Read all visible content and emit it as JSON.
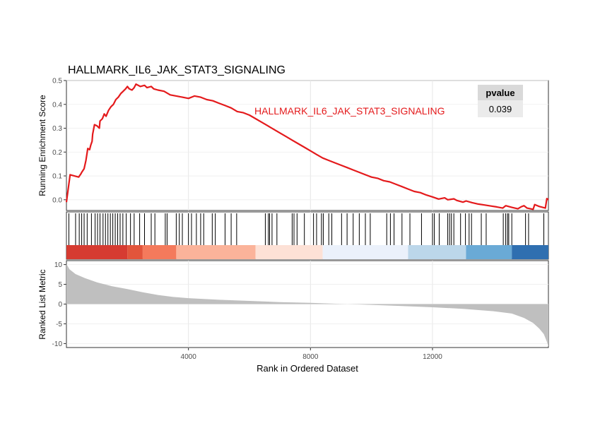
{
  "chart_data": {
    "type": "line",
    "title": "HALLMARK_IL6_JAK_STAT3_SIGNALING",
    "gene_set_label": "HALLMARK_IL6_JAK_STAT3_SIGNALING",
    "line_color": "#e41a1c",
    "xlabel": "Rank in Ordered Dataset",
    "xlim": [
      0,
      15800
    ],
    "xticks": [
      4000,
      8000,
      12000
    ],
    "grid": true,
    "enrichment": {
      "ylabel": "Running Enrichment Score",
      "ylim": [
        -0.045,
        0.5
      ],
      "yticks": [
        0.0,
        0.1,
        0.2,
        0.3,
        0.4,
        0.5
      ],
      "ytick_labels": [
        "0.0",
        "0.1",
        "0.2",
        "0.3",
        "0.4",
        "0.5"
      ],
      "points": [
        [
          0,
          -0.01
        ],
        [
          120,
          0.105
        ],
        [
          400,
          0.095
        ],
        [
          480,
          0.11
        ],
        [
          500,
          0.115
        ],
        [
          580,
          0.13
        ],
        [
          640,
          0.165
        ],
        [
          700,
          0.215
        ],
        [
          760,
          0.21
        ],
        [
          800,
          0.23
        ],
        [
          840,
          0.245
        ],
        [
          860,
          0.275
        ],
        [
          920,
          0.315
        ],
        [
          1000,
          0.31
        ],
        [
          1080,
          0.3
        ],
        [
          1100,
          0.33
        ],
        [
          1180,
          0.34
        ],
        [
          1240,
          0.36
        ],
        [
          1300,
          0.35
        ],
        [
          1380,
          0.375
        ],
        [
          1460,
          0.39
        ],
        [
          1540,
          0.4
        ],
        [
          1620,
          0.42
        ],
        [
          1700,
          0.43
        ],
        [
          1780,
          0.445
        ],
        [
          1860,
          0.455
        ],
        [
          1940,
          0.465
        ],
        [
          2000,
          0.475
        ],
        [
          2060,
          0.465
        ],
        [
          2150,
          0.46
        ],
        [
          2220,
          0.47
        ],
        [
          2280,
          0.485
        ],
        [
          2420,
          0.475
        ],
        [
          2560,
          0.48
        ],
        [
          2640,
          0.47
        ],
        [
          2780,
          0.475
        ],
        [
          2860,
          0.465
        ],
        [
          3000,
          0.46
        ],
        [
          3200,
          0.455
        ],
        [
          3400,
          0.44
        ],
        [
          3600,
          0.435
        ],
        [
          3800,
          0.43
        ],
        [
          4000,
          0.425
        ],
        [
          4200,
          0.435
        ],
        [
          4400,
          0.43
        ],
        [
          4600,
          0.42
        ],
        [
          4800,
          0.415
        ],
        [
          5000,
          0.405
        ],
        [
          5200,
          0.395
        ],
        [
          5400,
          0.385
        ],
        [
          5600,
          0.37
        ],
        [
          5800,
          0.365
        ],
        [
          6000,
          0.355
        ],
        [
          6200,
          0.34
        ],
        [
          6400,
          0.325
        ],
        [
          6600,
          0.31
        ],
        [
          6800,
          0.295
        ],
        [
          7000,
          0.28
        ],
        [
          7200,
          0.265
        ],
        [
          7400,
          0.25
        ],
        [
          7600,
          0.235
        ],
        [
          7800,
          0.22
        ],
        [
          8000,
          0.205
        ],
        [
          8200,
          0.19
        ],
        [
          8400,
          0.175
        ],
        [
          8600,
          0.165
        ],
        [
          8800,
          0.155
        ],
        [
          9000,
          0.145
        ],
        [
          9200,
          0.135
        ],
        [
          9400,
          0.125
        ],
        [
          9600,
          0.115
        ],
        [
          9800,
          0.105
        ],
        [
          10000,
          0.095
        ],
        [
          10200,
          0.09
        ],
        [
          10400,
          0.08
        ],
        [
          10600,
          0.075
        ],
        [
          10800,
          0.065
        ],
        [
          11000,
          0.055
        ],
        [
          11200,
          0.045
        ],
        [
          11400,
          0.035
        ],
        [
          11600,
          0.03
        ],
        [
          11800,
          0.02
        ],
        [
          12000,
          0.012
        ],
        [
          12200,
          0.003
        ],
        [
          12400,
          0.008
        ],
        [
          12500,
          0.0
        ],
        [
          12700,
          0.004
        ],
        [
          12800,
          -0.003
        ],
        [
          13000,
          -0.01
        ],
        [
          13100,
          -0.005
        ],
        [
          13300,
          -0.012
        ],
        [
          13500,
          -0.018
        ],
        [
          13700,
          -0.022
        ],
        [
          13900,
          -0.026
        ],
        [
          14100,
          -0.03
        ],
        [
          14300,
          -0.035
        ],
        [
          14400,
          -0.025
        ],
        [
          14600,
          -0.032
        ],
        [
          14800,
          -0.038
        ],
        [
          14900,
          -0.03
        ],
        [
          15000,
          -0.025
        ],
        [
          15100,
          -0.035
        ],
        [
          15300,
          -0.04
        ],
        [
          15350,
          -0.02
        ],
        [
          15500,
          -0.028
        ],
        [
          15700,
          -0.035
        ],
        [
          15750,
          0.005
        ],
        [
          15800,
          0.0
        ]
      ]
    },
    "pvalue_table": {
      "header": "pvalue",
      "value": "0.039"
    },
    "hits": [
      80,
      300,
      420,
      500,
      580,
      680,
      820,
      940,
      1020,
      1100,
      1200,
      1280,
      1360,
      1440,
      1520,
      1600,
      1680,
      1760,
      1850,
      1960,
      2100,
      2220,
      2400,
      2560,
      2780,
      2900,
      3240,
      3300,
      3600,
      3700,
      3800,
      4000,
      4100,
      4260,
      4400,
      4500,
      4780,
      4880,
      5200,
      5400,
      5580,
      6520,
      6620,
      6660,
      6740,
      6900,
      7400,
      7460,
      7560,
      7800,
      8100,
      8200,
      8360,
      8420,
      8600,
      8700,
      9020,
      9200,
      9400,
      9600,
      9800,
      9960,
      10500,
      10620,
      10740,
      11000,
      11260,
      11640,
      12000,
      12060,
      12220,
      12500,
      12560,
      12620,
      12700,
      12920,
      13080,
      13200,
      13280,
      13600,
      13760,
      14320,
      14400,
      14460,
      14500,
      14600,
      15050,
      15150,
      15650
    ],
    "color_bands": [
      {
        "from": 0,
        "to": 2000,
        "color": "#d63b31"
      },
      {
        "from": 2000,
        "to": 2500,
        "color": "#e2553b"
      },
      {
        "from": 2500,
        "to": 3600,
        "color": "#f47a5c"
      },
      {
        "from": 3600,
        "to": 6200,
        "color": "#fbb39a"
      },
      {
        "from": 6200,
        "to": 8400,
        "color": "#fde1d6"
      },
      {
        "from": 8400,
        "to": 11200,
        "color": "#ebf1fb"
      },
      {
        "from": 11200,
        "to": 13100,
        "color": "#bcd7ea"
      },
      {
        "from": 13100,
        "to": 14600,
        "color": "#6aaad6"
      },
      {
        "from": 14600,
        "to": 15800,
        "color": "#2f6fb0"
      }
    ],
    "ranked_metric": {
      "ylabel": "Ranked List Metric",
      "ylim": [
        -11,
        11
      ],
      "yticks": [
        10,
        5,
        0,
        -5,
        -10
      ],
      "ytick_labels": [
        "10",
        "5",
        "0",
        "-5",
        "-10"
      ],
      "fill_color": "#bfbfbf",
      "points": [
        [
          0,
          10.2
        ],
        [
          100,
          8.8
        ],
        [
          300,
          7.6
        ],
        [
          600,
          6.6
        ],
        [
          1000,
          5.5
        ],
        [
          1500,
          4.5
        ],
        [
          2000,
          3.8
        ],
        [
          2500,
          3.0
        ],
        [
          3000,
          2.3
        ],
        [
          3500,
          1.8
        ],
        [
          4000,
          1.5
        ],
        [
          5000,
          1.1
        ],
        [
          6000,
          0.8
        ],
        [
          7000,
          0.5
        ],
        [
          8000,
          0.3
        ],
        [
          9000,
          0.05
        ],
        [
          10000,
          -0.2
        ],
        [
          11000,
          -0.5
        ],
        [
          12000,
          -0.8
        ],
        [
          13000,
          -1.2
        ],
        [
          14000,
          -1.8
        ],
        [
          14600,
          -2.4
        ],
        [
          15000,
          -3.5
        ],
        [
          15300,
          -4.8
        ],
        [
          15500,
          -6.2
        ],
        [
          15650,
          -7.6
        ],
        [
          15750,
          -9.5
        ],
        [
          15800,
          -10.8
        ]
      ]
    }
  }
}
